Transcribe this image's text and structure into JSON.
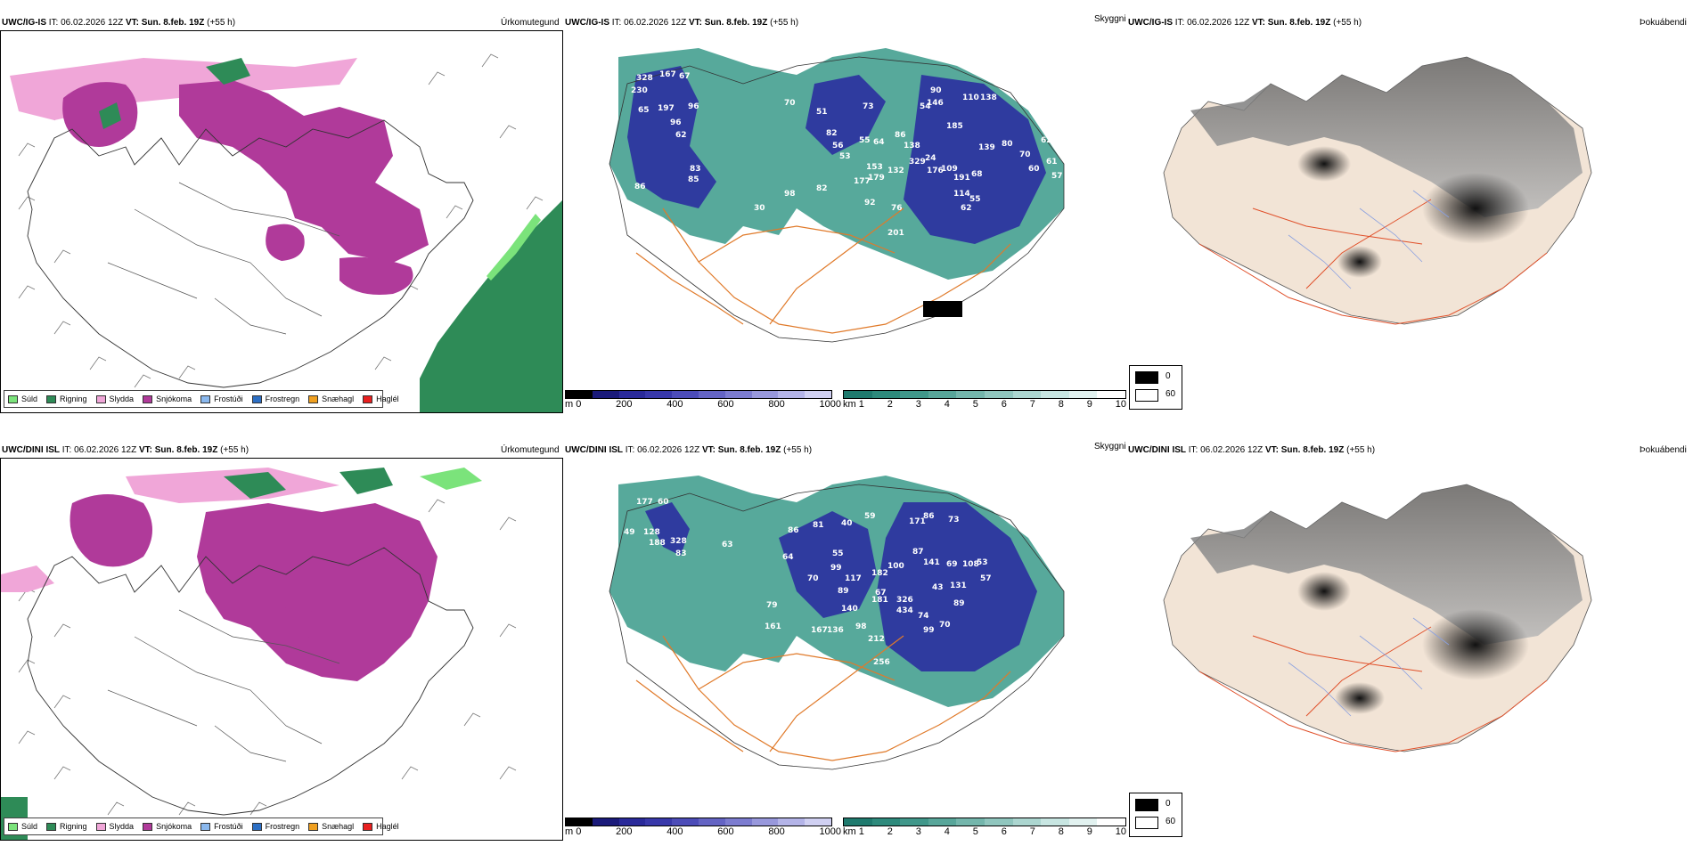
{
  "rows": [
    {
      "model": "UWC/IG-IS",
      "it_label": "IT:",
      "it": "06.02.2026 12Z",
      "vt_label": "VT:",
      "vt": "Sun. 8.feb. 19Z",
      "lead": "(+55 h)",
      "vis_labels": [
        "82",
        "56",
        "53",
        "55",
        "64",
        "86",
        "138",
        "329",
        "176",
        "132",
        "24",
        "109",
        "191",
        "114",
        "68",
        "55",
        "62",
        "92",
        "76",
        "201",
        "177",
        "179",
        "153",
        "82",
        "98",
        "30",
        "197",
        "96",
        "62",
        "83",
        "85",
        "86",
        "230",
        "328",
        "65",
        "167",
        "67",
        "96",
        "70",
        "51",
        "73",
        "90",
        "146",
        "110",
        "138",
        "185",
        "139",
        "80",
        "70",
        "60",
        "62",
        "61",
        "57",
        "54"
      ]
    },
    {
      "model": "UWC/DINI ISL",
      "it_label": "IT:",
      "it": "06.02.2026 12Z",
      "vt_label": "VT:",
      "vt": "Sun. 8.feb. 19Z",
      "lead": "(+55 h)",
      "vis_labels": [
        "177",
        "60",
        "128",
        "188",
        "328",
        "83",
        "49",
        "63",
        "86",
        "64",
        "81",
        "70",
        "99",
        "117",
        "89",
        "140",
        "136",
        "98",
        "212",
        "74",
        "99",
        "70",
        "67",
        "100",
        "182",
        "87",
        "141",
        "69",
        "43",
        "131",
        "89",
        "108",
        "53",
        "57",
        "326",
        "434",
        "181",
        "167",
        "79",
        "161",
        "256",
        "40",
        "59",
        "171",
        "86",
        "73",
        "55"
      ]
    }
  ],
  "panel_titles": {
    "precip": "Úrkomutegund",
    "vis": "Skyggni",
    "fog": "Þokuábendi"
  },
  "precip_legend": [
    {
      "label": "Súld",
      "color": "#7be37b"
    },
    {
      "label": "Rigning",
      "color": "#2e8b57"
    },
    {
      "label": "Slydda",
      "color": "#f0a6d8"
    },
    {
      "label": "Snjókoma",
      "color": "#b03a9a"
    },
    {
      "label": "Frostúði",
      "color": "#8ab8ee"
    },
    {
      "label": "Frostregn",
      "color": "#2d6fc4"
    },
    {
      "label": "Snæhagl",
      "color": "#f0a020"
    },
    {
      "label": "Haglél",
      "color": "#e82020"
    }
  ],
  "height_scale": {
    "unit": "m",
    "ticks": [
      "0",
      "200",
      "400",
      "600",
      "800",
      "1000"
    ]
  },
  "km_scale": {
    "unit": "km",
    "ticks": [
      "1",
      "2",
      "3",
      "4",
      "5",
      "6",
      "7",
      "8",
      "9",
      "10"
    ]
  },
  "fog_legend": {
    "high": "0",
    "low": "60"
  },
  "colors": {
    "snow": "#b03a9a",
    "rain": "#2e8b57",
    "sleet": "#f0a6d8",
    "drizzle": "#7be37b",
    "vis_blue": "#2828a0",
    "vis_teal": "#3a9a8a",
    "roads": "#e07a2a",
    "land": "#f2e4d6"
  }
}
